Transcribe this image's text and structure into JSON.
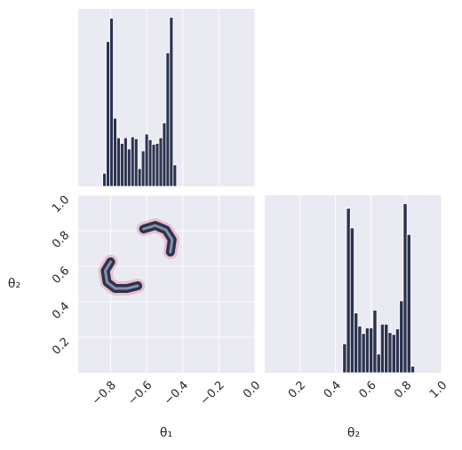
{
  "chart_data": {
    "type": "corner",
    "grid": true,
    "color": "#2b3350",
    "contour_color": "#e8a3b4",
    "count_lim": [
      0,
      190
    ],
    "params": [
      {
        "label": "θ₁",
        "lim": [
          -0.98,
          0
        ],
        "ticks": [
          {
            "value": -0.8,
            "label": "−0.8"
          },
          {
            "value": -0.6,
            "label": "−0.6"
          },
          {
            "value": -0.4,
            "label": "−0.4"
          },
          {
            "value": -0.2,
            "label": "−0.2"
          },
          {
            "value": 0,
            "label": "0.0"
          }
        ],
        "bins": [
          -0.844,
          -0.8245,
          -0.805,
          -0.7855,
          -0.766,
          -0.7465,
          -0.727,
          -0.7075,
          -0.688,
          -0.6685,
          -0.649,
          -0.6295,
          -0.61,
          -0.5905,
          -0.571,
          -0.5515,
          -0.532,
          -0.5125,
          -0.493,
          -0.4735,
          -0.454,
          -0.4345
        ],
        "counts": [
          14,
          155,
          180,
          73,
          52,
          46,
          52,
          40,
          53,
          51,
          19,
          38,
          56,
          50,
          45,
          46,
          52,
          68,
          143,
          181,
          23
        ]
      },
      {
        "label": "θ₂",
        "lim": [
          0,
          1
        ],
        "ticks": [
          0.2,
          0.4,
          0.6,
          0.8,
          {
            "value": 1,
            "label": "1.0"
          }
        ],
        "bins": [
          0.441,
          0.4624,
          0.4838,
          0.5052,
          0.5266,
          0.548,
          0.5694,
          0.5908,
          0.6122,
          0.6336,
          0.655,
          0.6764,
          0.6978,
          0.7192,
          0.7406,
          0.762,
          0.7834,
          0.8048,
          0.8262,
          0.8476
        ],
        "counts": [
          31,
          176,
          155,
          64,
          50,
          42,
          48,
          48,
          67,
          20,
          52,
          52,
          43,
          41,
          47,
          77,
          181,
          148,
          7
        ]
      }
    ],
    "ridges": [
      {
        "x": [
          -0.8,
          -0.83,
          -0.82,
          -0.775,
          -0.71,
          -0.65
        ],
        "y": [
          0.625,
          0.575,
          0.51,
          0.475,
          0.475,
          0.49
        ]
      },
      {
        "x": [
          -0.617,
          -0.553,
          -0.494,
          -0.459,
          -0.469
        ],
        "y": [
          0.81,
          0.83,
          0.805,
          0.75,
          0.68
        ]
      }
    ]
  }
}
